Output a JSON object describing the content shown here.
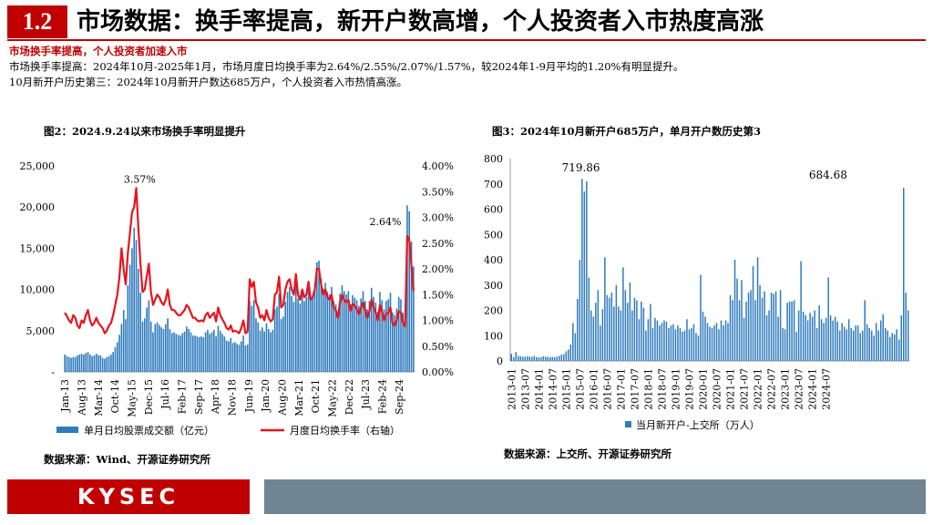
{
  "header": {
    "badge": "1.2",
    "title": "市场数据：换手率提高，新开户数高增，个人投资者入市热度高涨"
  },
  "summary": {
    "subtitle": "市场换手率提高，个人投资者加速入市",
    "line1": "市场换手率提高：2024年10月-2025年1月，市场月度日均换手率为2.64%/2.55%/2.07%/1.57%，较2024年1-9月平均的1.20%有明显提升。",
    "line2": "10月新开户历史第三：2024年10月新开户数达685万户，个人投资者入市热情高涨。"
  },
  "footer": {
    "logo": "KYSEC"
  },
  "colors": {
    "bar": "#2e7bbd",
    "line": "#e8141e",
    "accent": "#c00000"
  },
  "chart_data": [
    {
      "type": "bar+line",
      "title": "图2：2024.9.24以来市场换手率明显提升",
      "source": "数据来源：Wind、开源证券研究所",
      "x_ticks": [
        "Jan-13",
        "Aug-13",
        "Mar-14",
        "Oct-14",
        "May-15",
        "Dec-15",
        "Jul-16",
        "Feb-17",
        "Sep-17",
        "Apr-18",
        "Nov-18",
        "Jun-19",
        "Jan-20",
        "Aug-20",
        "Mar-21",
        "Oct-21",
        "May-22",
        "Dec-22",
        "Jul-23",
        "Feb-24",
        "Sep-24"
      ],
      "y_left": {
        "ylim": [
          0,
          25000
        ],
        "ticks": [
          "-",
          "5,000",
          "10,000",
          "15,000",
          "20,000",
          "25,000"
        ]
      },
      "y_right": {
        "ylim": [
          0,
          4
        ],
        "ticks": [
          "0.00%",
          "0.50%",
          "1.00%",
          "1.50%",
          "2.00%",
          "2.50%",
          "3.00%",
          "3.50%",
          "4.00%"
        ]
      },
      "annotations": [
        {
          "text": "3.57%",
          "x": "May-15",
          "value": 3.57
        },
        {
          "text": "2.64%",
          "x": "Oct-24",
          "value": 2.64
        }
      ],
      "legend": {
        "placement": "bottom",
        "bar_label": "单月日均股票成交额（亿元）",
        "line_label": "月度日均换手率（右轴）"
      },
      "series": [
        {
          "name": "单月日均股票成交额（亿元）",
          "kind": "bar",
          "axis": "left",
          "values": [
            2100,
            1900,
            1800,
            1700,
            1800,
            1800,
            2000,
            2100,
            2200,
            2100,
            2300,
            2400,
            2100,
            1900,
            2000,
            2200,
            2000,
            2000,
            1700,
            1600,
            1800,
            1900,
            2100,
            2400,
            3000,
            3600,
            4500,
            5800,
            7500,
            6400,
            10500,
            13000,
            15000,
            17500,
            16000,
            12500,
            9600,
            6100,
            6500,
            7800,
            8700,
            6100,
            4800,
            5800,
            6000,
            5700,
            5400,
            5200,
            5800,
            6500,
            5200,
            4700,
            4800,
            4600,
            4500,
            4400,
            4700,
            4900,
            5500,
            5200,
            4800,
            4400,
            4400,
            4300,
            4200,
            4300,
            4200,
            4800,
            5100,
            4600,
            4800,
            5100,
            4300,
            5600,
            5000,
            4600,
            4300,
            3800,
            3700,
            4100,
            3500,
            3600,
            3400,
            3300,
            3700,
            4400,
            3200,
            3300,
            8600,
            8000,
            8700,
            6500,
            6000,
            5000,
            5400,
            4900,
            5900,
            5200,
            4800,
            5100,
            7600,
            7900,
            9500,
            6400,
            6700,
            8500,
            9700,
            10300,
            9200,
            8500,
            11200,
            8900,
            8300,
            9600,
            8600,
            9100,
            10800,
            8700,
            9000,
            10200,
            13300,
            13500,
            11300,
            10100,
            10800,
            9700,
            9400,
            10300,
            8600,
            8200,
            7200,
            9500,
            10500,
            9800,
            9400,
            9800,
            8200,
            9300,
            9000,
            8700,
            8000,
            8900,
            9800,
            8600,
            7600,
            8600,
            10200,
            9100,
            8400,
            7300,
            9700,
            8700,
            7600,
            8600,
            8800,
            9600,
            7200,
            6900,
            7700,
            9100,
            8800,
            7200,
            6400,
            20200,
            19500,
            15800,
            12800
          ]
        },
        {
          "name": "月度日均换手率（右轴）",
          "kind": "line",
          "axis": "right",
          "values": [
            1.15,
            1.08,
            1.0,
            0.95,
            1.1,
            1.05,
            0.9,
            0.85,
            1.0,
            0.95,
            1.1,
            1.2,
            1.0,
            0.9,
            0.95,
            1.05,
            0.95,
            0.9,
            0.85,
            0.75,
            0.8,
            0.9,
            0.95,
            1.1,
            1.3,
            1.5,
            1.85,
            2.4,
            2.0,
            1.7,
            2.3,
            2.7,
            3.1,
            3.2,
            3.57,
            2.8,
            2.1,
            1.55,
            1.6,
            1.85,
            2.1,
            1.55,
            1.3,
            1.4,
            1.5,
            1.45,
            1.35,
            1.3,
            1.4,
            1.6,
            1.3,
            1.2,
            1.2,
            1.15,
            1.1,
            1.1,
            1.15,
            1.2,
            1.3,
            1.25,
            1.15,
            1.05,
            1.05,
            1.0,
            0.98,
            1.0,
            0.98,
            1.1,
            1.15,
            1.05,
            1.1,
            1.15,
            0.98,
            1.25,
            1.1,
            1.02,
            0.95,
            0.85,
            0.82,
            0.9,
            0.78,
            0.8,
            0.78,
            0.75,
            0.85,
            1.0,
            0.75,
            0.78,
            1.8,
            1.65,
            1.75,
            1.35,
            1.25,
            1.05,
            1.1,
            1.0,
            1.2,
            1.05,
            0.98,
            1.02,
            1.5,
            1.55,
            1.85,
            1.25,
            1.3,
            1.6,
            1.75,
            1.8,
            1.6,
            1.5,
            1.9,
            1.5,
            1.4,
            1.6,
            1.45,
            1.5,
            1.75,
            1.4,
            1.45,
            1.6,
            2.0,
            2.0,
            1.7,
            1.5,
            1.6,
            1.45,
            1.4,
            1.5,
            1.25,
            1.2,
            1.05,
            1.35,
            1.5,
            1.4,
            1.35,
            1.4,
            1.18,
            1.32,
            1.28,
            1.22,
            1.12,
            1.25,
            1.35,
            1.2,
            1.05,
            1.18,
            1.4,
            1.25,
            1.15,
            1.0,
            1.3,
            1.15,
            1.0,
            1.12,
            1.15,
            1.25,
            0.95,
            0.9,
            1.0,
            1.18,
            1.15,
            0.95,
            0.88,
            2.64,
            2.55,
            2.07,
            1.57
          ]
        }
      ]
    },
    {
      "type": "bar",
      "title": "图3：2024年10月新开户685万户，单月开户数历史第3",
      "source": "数据来源：上交所、开源证券研究所",
      "x_ticks": [
        "2013-01",
        "2013-07",
        "2014-01",
        "2014-07",
        "2015-01",
        "2015-07",
        "2016-01",
        "2016-07",
        "2017-01",
        "2017-07",
        "2018-01",
        "2018-07",
        "2019-01",
        "2019-07",
        "2020-01",
        "2020-07",
        "2021-01",
        "2021-07",
        "2022-01",
        "2022-07",
        "2023-01",
        "2023-07",
        "2024-01",
        "2024-07"
      ],
      "ylim": [
        0,
        800
      ],
      "y_ticks": [
        "0",
        "100",
        "200",
        "300",
        "400",
        "500",
        "600",
        "700",
        "800"
      ],
      "annotations": [
        {
          "text": "719.86",
          "x": "2015-04",
          "value": 719.86
        },
        {
          "text": "684.68",
          "x": "2024-10",
          "value": 684.68
        }
      ],
      "legend": {
        "placement": "bottom",
        "label": "当月新开户-上交所（万人）"
      },
      "series": [
        {
          "name": "当月新开户-上交所（万人）",
          "values": [
            28,
            15,
            35,
            20,
            18,
            17,
            16,
            18,
            17,
            16,
            20,
            15,
            14,
            15,
            18,
            17,
            16,
            15,
            16,
            15,
            17,
            20,
            25,
            27,
            38,
            45,
            65,
            150,
            110,
            245,
            400,
            719.86,
            670,
            710,
            330,
            200,
            175,
            230,
            280,
            140,
            205,
            410,
            260,
            250,
            270,
            215,
            300,
            215,
            200,
            370,
            280,
            230,
            310,
            200,
            250,
            240,
            165,
            235,
            210,
            120,
            165,
            225,
            130,
            170,
            160,
            140,
            150,
            160,
            155,
            130,
            140,
            145,
            125,
            140,
            130,
            115,
            120,
            165,
            125,
            130,
            145,
            110,
            100,
            340,
            195,
            175,
            150,
            135,
            130,
            140,
            150,
            125,
            160,
            140,
            160,
            150,
            260,
            240,
            400,
            325,
            240,
            320,
            170,
            235,
            270,
            280,
            375,
            240,
            410,
            300,
            250,
            275,
            180,
            200,
            270,
            265,
            275,
            175,
            280,
            130,
            125,
            230,
            235,
            235,
            240,
            115,
            200,
            395,
            195,
            180,
            160,
            190,
            175,
            200,
            130,
            220,
            165,
            150,
            170,
            330,
            180,
            160,
            175,
            155,
            120,
            150,
            135,
            125,
            165,
            130,
            120,
            140,
            140,
            110,
            120,
            240,
            145,
            130,
            120,
            100,
            150,
            120,
            160,
            185,
            130,
            120,
            95,
            110,
            105,
            125,
            85,
            180,
            684.68,
            270,
            200
          ]
        }
      ]
    }
  ]
}
